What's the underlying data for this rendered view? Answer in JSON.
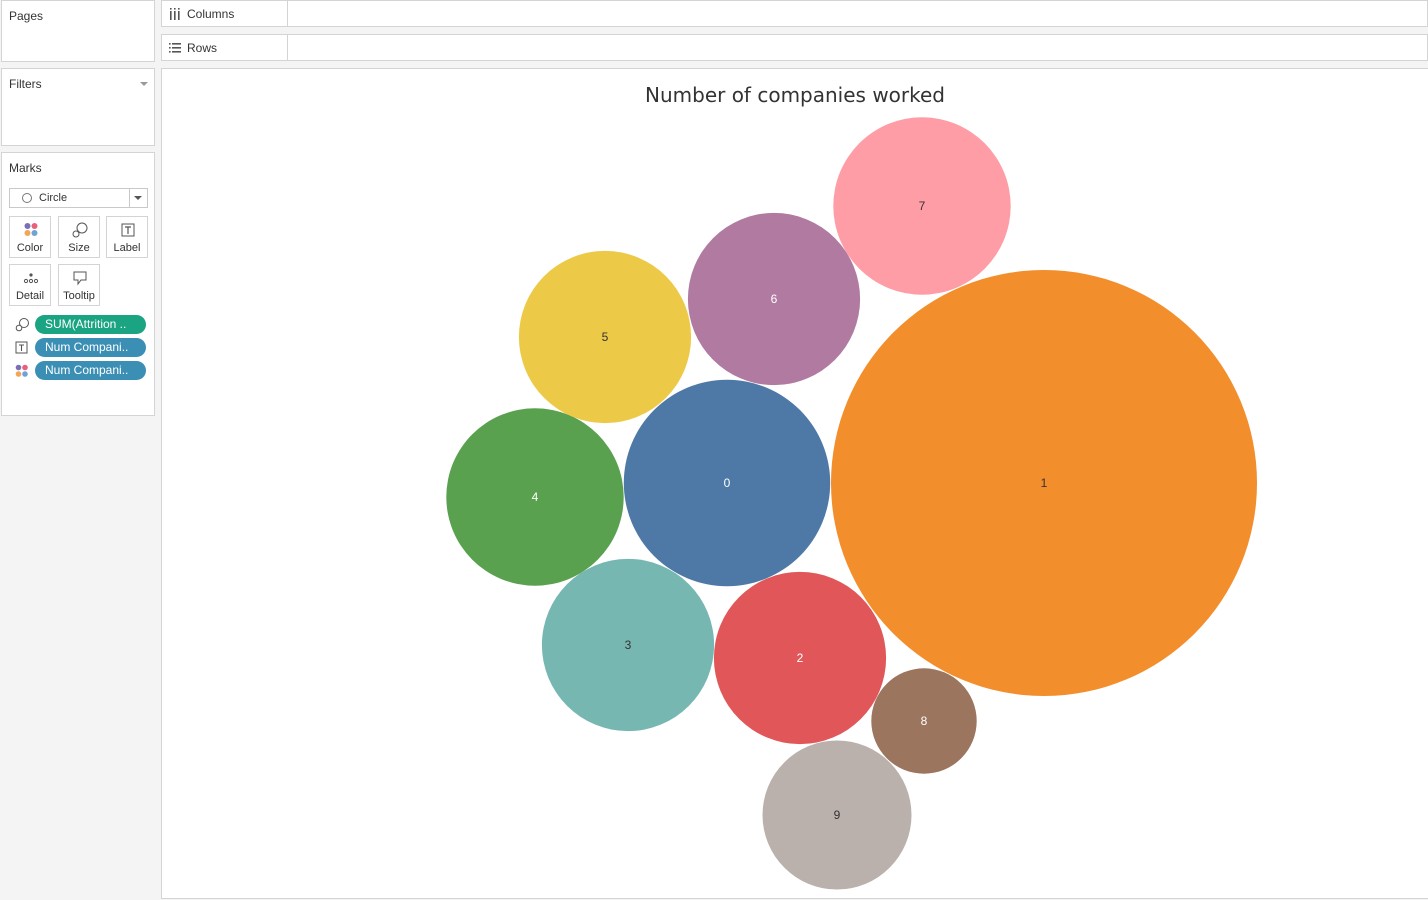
{
  "left_panel": {
    "pages": {
      "title": "Pages"
    },
    "filters": {
      "title": "Filters"
    },
    "marks": {
      "title": "Marks",
      "mark_type": "Circle",
      "buttons": {
        "color": "Color",
        "size": "Size",
        "label": "Label",
        "detail": "Detail",
        "tooltip": "Tooltip"
      },
      "pills": [
        {
          "text": "SUM(Attrition ..",
          "icon": "size-icon",
          "color": "#1aa482"
        },
        {
          "text": "Num Compani..",
          "icon": "label-icon",
          "color": "#3b8fb5"
        },
        {
          "text": "Num Compani..",
          "icon": "color-icon",
          "color": "#3b8fb5"
        }
      ]
    }
  },
  "shelves": {
    "columns": {
      "label": "Columns",
      "icon": "columns-icon"
    },
    "rows": {
      "label": "Rows",
      "icon": "rows-icon"
    }
  },
  "chart_data": {
    "type": "bubble",
    "title": "Number of companies worked",
    "bubbles": [
      {
        "label": "1",
        "value": 98,
        "color": "#f28e2b",
        "text_color": "#333333"
      },
      {
        "label": "0",
        "value": 23,
        "color": "#4e79a7",
        "text_color": "#ffffff"
      },
      {
        "label": "2",
        "value": 16,
        "color": "#e15759",
        "text_color": "#ffffff"
      },
      {
        "label": "3",
        "value": 16,
        "color": "#76b7b2",
        "text_color": "#333333"
      },
      {
        "label": "4",
        "value": 17,
        "color": "#59a14f",
        "text_color": "#ffffff"
      },
      {
        "label": "5",
        "value": 16,
        "color": "#edc948",
        "text_color": "#333333"
      },
      {
        "label": "6",
        "value": 16,
        "color": "#b07aa1",
        "text_color": "#ffffff"
      },
      {
        "label": "7",
        "value": 17,
        "color": "#ff9da7",
        "text_color": "#333333"
      },
      {
        "label": "8",
        "value": 6,
        "color": "#9c755f",
        "text_color": "#ffffff"
      },
      {
        "label": "9",
        "value": 12,
        "color": "#bab0ac",
        "text_color": "#333333"
      }
    ]
  }
}
